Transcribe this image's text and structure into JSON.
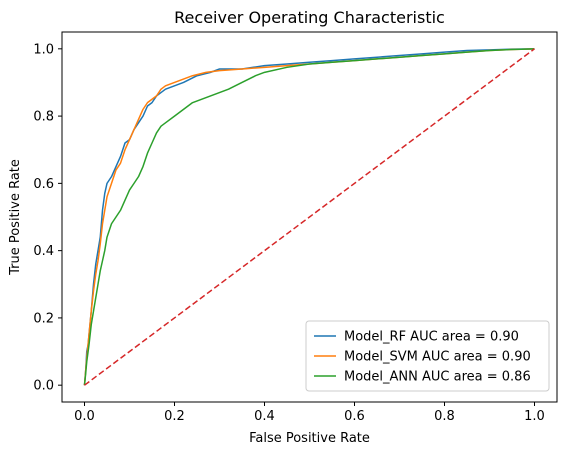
{
  "chart_data": {
    "type": "line",
    "title": "Receiver Operating Characteristic",
    "xlabel": "False Positive Rate",
    "ylabel": "True Positive Rate",
    "xlim": [
      -0.05,
      1.05
    ],
    "ylim": [
      -0.05,
      1.05
    ],
    "xticks": [
      0.0,
      0.2,
      0.4,
      0.6,
      0.8,
      1.0
    ],
    "xtick_labels": [
      "0.0",
      "0.2",
      "0.4",
      "0.6",
      "0.8",
      "1.0"
    ],
    "yticks": [
      0.0,
      0.2,
      0.4,
      0.6,
      0.8,
      1.0
    ],
    "ytick_labels": [
      "0.0",
      "0.2",
      "0.4",
      "0.6",
      "0.8",
      "1.0"
    ],
    "grid": false,
    "legend_position": "lower-right",
    "series": [
      {
        "name": "Model_RF AUC area = 0.90",
        "color": "#1f77b4",
        "style": "solid",
        "x": [
          0.0,
          0.003,
          0.005,
          0.008,
          0.01,
          0.015,
          0.02,
          0.025,
          0.03,
          0.035,
          0.04,
          0.045,
          0.05,
          0.055,
          0.06,
          0.07,
          0.08,
          0.09,
          0.1,
          0.11,
          0.12,
          0.13,
          0.14,
          0.15,
          0.16,
          0.17,
          0.18,
          0.2,
          0.22,
          0.25,
          0.28,
          0.3,
          0.35,
          0.4,
          0.45,
          0.5,
          0.55,
          0.6,
          0.65,
          0.7,
          0.75,
          0.8,
          0.85,
          0.9,
          0.95,
          1.0
        ],
        "y": [
          0.0,
          0.05,
          0.1,
          0.12,
          0.15,
          0.22,
          0.3,
          0.36,
          0.4,
          0.44,
          0.52,
          0.57,
          0.6,
          0.61,
          0.62,
          0.65,
          0.68,
          0.72,
          0.73,
          0.76,
          0.78,
          0.8,
          0.83,
          0.84,
          0.86,
          0.87,
          0.88,
          0.89,
          0.9,
          0.92,
          0.93,
          0.94,
          0.94,
          0.95,
          0.955,
          0.96,
          0.965,
          0.97,
          0.975,
          0.98,
          0.985,
          0.99,
          0.995,
          0.997,
          0.999,
          1.0
        ]
      },
      {
        "name": "Model_SVM AUC area = 0.90",
        "color": "#ff7f0e",
        "style": "solid",
        "x": [
          0.0,
          0.003,
          0.005,
          0.01,
          0.015,
          0.02,
          0.025,
          0.03,
          0.035,
          0.04,
          0.045,
          0.05,
          0.06,
          0.07,
          0.08,
          0.09,
          0.1,
          0.11,
          0.12,
          0.13,
          0.14,
          0.15,
          0.16,
          0.17,
          0.18,
          0.2,
          0.22,
          0.24,
          0.27,
          0.3,
          0.35,
          0.4,
          0.45,
          0.5,
          0.55,
          0.6,
          0.65,
          0.7,
          0.75,
          0.8,
          0.85,
          0.9,
          0.95,
          1.0
        ],
        "y": [
          0.0,
          0.05,
          0.08,
          0.15,
          0.22,
          0.28,
          0.33,
          0.37,
          0.42,
          0.48,
          0.52,
          0.56,
          0.6,
          0.64,
          0.66,
          0.7,
          0.73,
          0.76,
          0.79,
          0.82,
          0.84,
          0.85,
          0.86,
          0.88,
          0.89,
          0.9,
          0.91,
          0.92,
          0.93,
          0.935,
          0.94,
          0.945,
          0.95,
          0.955,
          0.96,
          0.965,
          0.97,
          0.975,
          0.98,
          0.985,
          0.99,
          0.995,
          0.998,
          1.0
        ]
      },
      {
        "name": "Model_ANN AUC area = 0.86",
        "color": "#2ca02c",
        "style": "solid",
        "x": [
          0.0,
          0.003,
          0.005,
          0.01,
          0.015,
          0.02,
          0.025,
          0.03,
          0.035,
          0.04,
          0.045,
          0.05,
          0.06,
          0.07,
          0.08,
          0.09,
          0.1,
          0.11,
          0.12,
          0.13,
          0.14,
          0.15,
          0.16,
          0.17,
          0.18,
          0.2,
          0.22,
          0.24,
          0.26,
          0.28,
          0.3,
          0.32,
          0.35,
          0.38,
          0.4,
          0.45,
          0.5,
          0.55,
          0.6,
          0.65,
          0.7,
          0.75,
          0.8,
          0.85,
          0.9,
          0.95,
          1.0
        ],
        "y": [
          0.0,
          0.04,
          0.07,
          0.12,
          0.18,
          0.22,
          0.26,
          0.3,
          0.34,
          0.37,
          0.4,
          0.44,
          0.48,
          0.5,
          0.52,
          0.55,
          0.58,
          0.6,
          0.62,
          0.65,
          0.69,
          0.72,
          0.75,
          0.77,
          0.78,
          0.8,
          0.82,
          0.84,
          0.85,
          0.86,
          0.87,
          0.88,
          0.9,
          0.92,
          0.93,
          0.945,
          0.955,
          0.96,
          0.965,
          0.97,
          0.975,
          0.98,
          0.985,
          0.99,
          0.995,
          0.998,
          1.0
        ]
      },
      {
        "name": "",
        "color": "#d62728",
        "style": "dashed",
        "x": [
          0.0,
          1.0
        ],
        "y": [
          0.0,
          1.0
        ]
      }
    ]
  }
}
